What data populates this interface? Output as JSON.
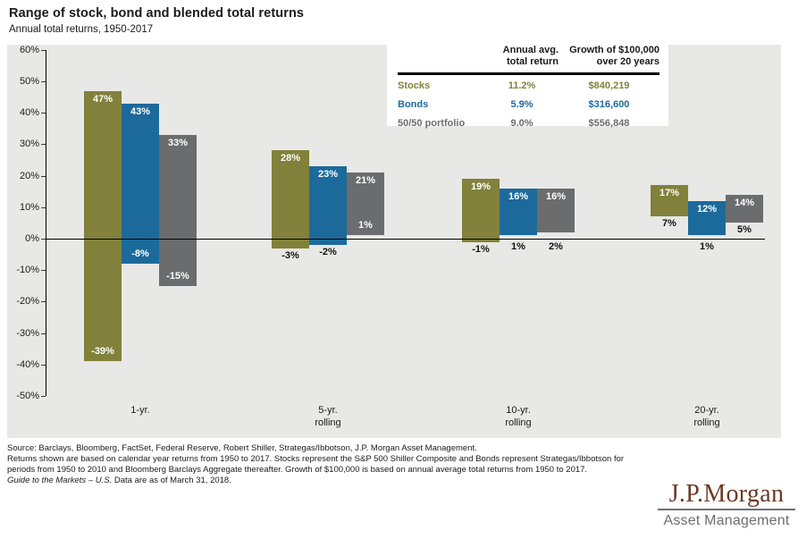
{
  "header": {
    "title": "Range of stock, bond and blended total returns",
    "subtitle": "Annual total returns, 1950-2017"
  },
  "chart_data": {
    "type": "bar",
    "subtype": "floating-range-columns",
    "title": "Range of stock, bond and blended total returns",
    "subtitle": "Annual total returns, 1950-2017",
    "ylim": [
      -50,
      60
    ],
    "grid": false,
    "legend_position": "none (summary table top-right acts as legend)",
    "yticks": [
      {
        "value": 60,
        "label": "60%"
      },
      {
        "value": 50,
        "label": "50%"
      },
      {
        "value": 40,
        "label": "40%"
      },
      {
        "value": 30,
        "label": "30%"
      },
      {
        "value": 20,
        "label": "20%"
      },
      {
        "value": 10,
        "label": "10%"
      },
      {
        "value": 0,
        "label": "0%"
      },
      {
        "value": -10,
        "label": "-10%"
      },
      {
        "value": -20,
        "label": "-20%"
      },
      {
        "value": -30,
        "label": "-30%"
      },
      {
        "value": -40,
        "label": "-40%"
      },
      {
        "value": -50,
        "label": "-50%"
      }
    ],
    "categories": [
      "1-yr.",
      "5-yr.\nrolling",
      "10-yr.\nrolling",
      "20-yr.\nrolling"
    ],
    "series": [
      {
        "name": "Stocks",
        "color": "#81813B",
        "ranges": [
          {
            "max": 47,
            "min": -39,
            "max_label": "47%",
            "min_label": "-39%",
            "min_label_pos": "inside"
          },
          {
            "max": 28,
            "min": -3,
            "max_label": "28%",
            "min_label": "-3%",
            "min_label_pos": "below"
          },
          {
            "max": 19,
            "min": -1,
            "max_label": "19%",
            "min_label": "-1%",
            "min_label_pos": "below"
          },
          {
            "max": 17,
            "min": 7,
            "max_label": "17%",
            "min_label": "7%",
            "min_label_pos": "below"
          }
        ]
      },
      {
        "name": "Bonds",
        "color": "#1C6A9B",
        "ranges": [
          {
            "max": 43,
            "min": -8,
            "max_label": "43%",
            "min_label": "-8%",
            "min_label_pos": "inside"
          },
          {
            "max": 23,
            "min": -2,
            "max_label": "23%",
            "min_label": "-2%",
            "min_label_pos": "below"
          },
          {
            "max": 16,
            "min": 1,
            "max_label": "16%",
            "min_label": "1%",
            "min_label_pos": "below"
          },
          {
            "max": 12,
            "min": 1,
            "max_label": "12%",
            "min_label": "1%",
            "min_label_pos": "below"
          }
        ]
      },
      {
        "name": "50/50 portfolio",
        "color": "#6B6C6E",
        "ranges": [
          {
            "max": 33,
            "min": -15,
            "max_label": "33%",
            "min_label": "-15%",
            "min_label_pos": "inside"
          },
          {
            "max": 21,
            "min": 1,
            "max_label": "21%",
            "min_label": "1%",
            "min_label_pos": "inside"
          },
          {
            "max": 16,
            "min": 2,
            "max_label": "16%",
            "min_label": "2%",
            "min_label_pos": "below"
          },
          {
            "max": 14,
            "min": 5,
            "max_label": "14%",
            "min_label": "5%",
            "min_label_pos": "below"
          }
        ]
      }
    ]
  },
  "table": {
    "header": {
      "metric": "Annual avg.\ntotal return",
      "growth": "Growth of $100,000\nover 20 years"
    },
    "rows": [
      {
        "label": "Stocks",
        "avg_return": "11.2%",
        "growth": "$840,219"
      },
      {
        "label": "Bonds",
        "avg_return": "5.9%",
        "growth": "$316,600"
      },
      {
        "label": "50/50 portfolio",
        "avg_return": "9.0%",
        "growth": "$556,848"
      }
    ]
  },
  "footer": {
    "source": "Source: Barclays, Bloomberg, FactSet, Federal Reserve, Robert Shiller, Strategas/Ibbotson, J.P. Morgan Asset Management.",
    "returns_note": "Returns shown are based on calendar year returns from 1950 to 2017. Stocks represent the S&P 500 Shiller Composite and Bonds represent Strategas/Ibbotson for periods from 1950 to 2010 and Bloomberg Barclays Aggregate thereafter. Growth of $100,000 is based on annual average total returns from 1950 to 2017.",
    "gtm_italic": "Guide to the Markets – U.S.",
    "gtm_rest": " Data are as of March 31, 2018."
  },
  "logo": {
    "name": "J.P.Morgan",
    "division": "Asset Management",
    "name_color": "#6B3A26",
    "division_color": "#6D6E71"
  }
}
